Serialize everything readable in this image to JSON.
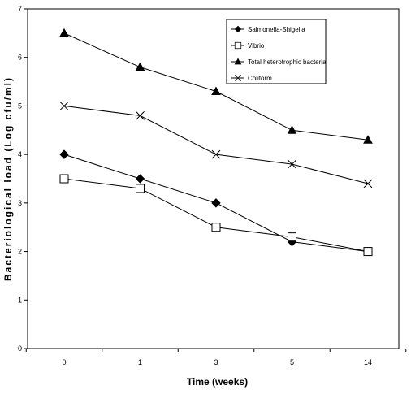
{
  "chart_data": {
    "type": "line",
    "title": "",
    "xlabel": "Time (weeks)",
    "ylabel": "Bacteriological load  (Log cfu/ml)",
    "categories": [
      "0",
      "1",
      "3",
      "5",
      "14"
    ],
    "ylim": [
      0,
      7
    ],
    "yticks": [
      "0",
      "1",
      "2",
      "3",
      "4",
      "5",
      "6",
      "7"
    ],
    "grid": false,
    "legend_position": "top-right",
    "series": [
      {
        "name": "Salmonella-Shigella",
        "marker": "filled-diamond",
        "values": [
          4.0,
          3.5,
          3.0,
          2.2,
          2.0
        ]
      },
      {
        "name": "Vibrio",
        "marker": "open-square",
        "values": [
          3.5,
          3.3,
          2.5,
          2.3,
          2.0
        ]
      },
      {
        "name": "Total heterotrophic bacteria",
        "marker": "filled-triangle",
        "values": [
          6.5,
          5.8,
          5.3,
          4.5,
          4.3
        ]
      },
      {
        "name": "Coliform",
        "marker": "x-cross",
        "values": [
          5.0,
          4.8,
          4.0,
          3.8,
          3.4
        ]
      }
    ]
  }
}
